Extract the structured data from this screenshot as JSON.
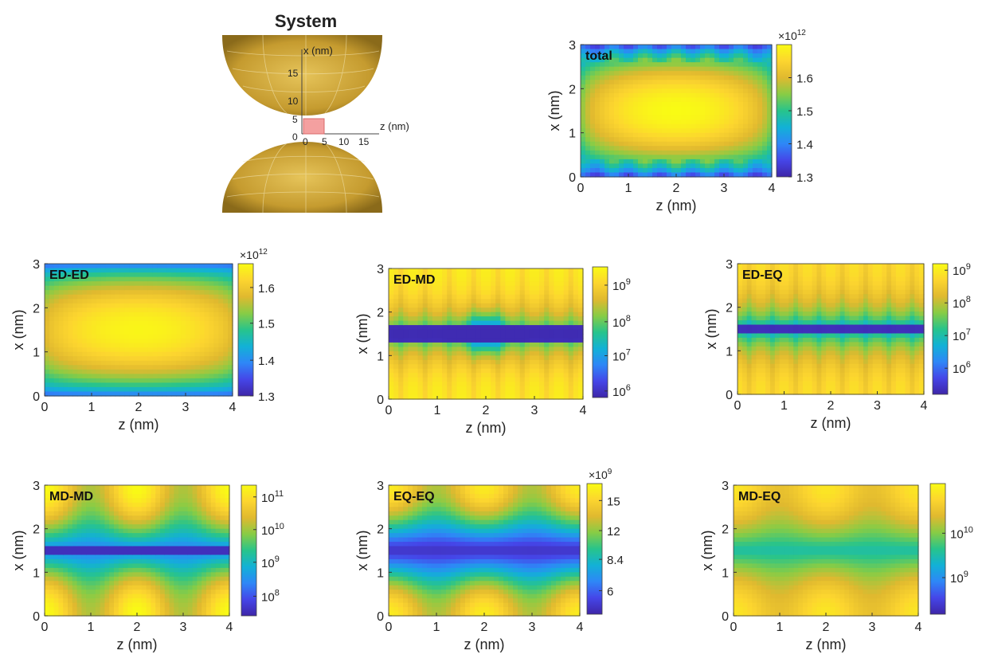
{
  "system": {
    "title": "System",
    "x_axis_label": "x (nm)",
    "z_axis_label": "z (nm)",
    "x_ticks": [
      "0",
      "5",
      "10",
      "15"
    ],
    "z_ticks": [
      "0",
      "5",
      "10",
      "15"
    ],
    "sphere_color": "#c9a23a",
    "region_color": "#f4a0a0"
  },
  "colors": {
    "colormap": [
      "#3e26a8",
      "#4546e8",
      "#2e87f7",
      "#12b1d6",
      "#28c48b",
      "#88cc45",
      "#e0b92f",
      "#fcd52f",
      "#f9fb14"
    ]
  },
  "chart_data": [
    {
      "type": "heatmap",
      "label": "total",
      "xlabel": "z (nm)",
      "ylabel": "x (nm)",
      "xlim": [
        0,
        4
      ],
      "ylim": [
        0,
        3
      ],
      "x_ticks": [
        "0",
        "1",
        "2",
        "3",
        "4"
      ],
      "y_ticks": [
        "0",
        "1",
        "2",
        "3"
      ],
      "colorbar": {
        "exponent": "×10",
        "exponent_power": "12",
        "ticks": [
          "1.6",
          "1.5",
          "1.4",
          "1.3"
        ],
        "scale": "linear",
        "range": [
          1.3,
          1.7
        ]
      }
    },
    {
      "type": "heatmap",
      "label": "ED-ED",
      "xlabel": "z (nm)",
      "ylabel": "x (nm)",
      "xlim": [
        0,
        4
      ],
      "ylim": [
        0,
        3
      ],
      "x_ticks": [
        "0",
        "1",
        "2",
        "3",
        "4"
      ],
      "y_ticks": [
        "0",
        "1",
        "2",
        "3"
      ],
      "colorbar": {
        "exponent": "×10",
        "exponent_power": "12",
        "ticks": [
          "1.6",
          "1.5",
          "1.4",
          "1.3"
        ],
        "scale": "linear",
        "range": [
          1.3,
          1.67
        ]
      }
    },
    {
      "type": "heatmap",
      "label": "ED-MD",
      "xlabel": "z (nm)",
      "ylabel": "x (nm)",
      "xlim": [
        0,
        4
      ],
      "ylim": [
        0,
        3
      ],
      "x_ticks": [
        "0",
        "1",
        "2",
        "3",
        "4"
      ],
      "y_ticks": [
        "0",
        "1",
        "2",
        "3"
      ],
      "colorbar": {
        "base": "10",
        "ticks": [
          "9",
          "8",
          "7",
          "6"
        ],
        "scale": "log"
      }
    },
    {
      "type": "heatmap",
      "label": "ED-EQ",
      "xlabel": "z (nm)",
      "ylabel": "x (nm)",
      "xlim": [
        0,
        4
      ],
      "ylim": [
        0,
        3
      ],
      "x_ticks": [
        "0",
        "1",
        "2",
        "3",
        "4"
      ],
      "y_ticks": [
        "0",
        "1",
        "2",
        "3"
      ],
      "colorbar": {
        "base": "10",
        "ticks": [
          "9",
          "8",
          "7",
          "6"
        ],
        "scale": "log"
      }
    },
    {
      "type": "heatmap",
      "label": "MD-MD",
      "xlabel": "z (nm)",
      "ylabel": "x (nm)",
      "xlim": [
        0,
        4
      ],
      "ylim": [
        0,
        3
      ],
      "x_ticks": [
        "0",
        "1",
        "2",
        "3",
        "4"
      ],
      "y_ticks": [
        "0",
        "1",
        "2",
        "3"
      ],
      "colorbar": {
        "base": "10",
        "ticks": [
          "11",
          "10",
          "9",
          "8"
        ],
        "scale": "log"
      }
    },
    {
      "type": "heatmap",
      "label": "EQ-EQ",
      "xlabel": "z (nm)",
      "ylabel": "x (nm)",
      "xlim": [
        0,
        4
      ],
      "ylim": [
        0,
        3
      ],
      "x_ticks": [
        "0",
        "1",
        "2",
        "3",
        "4"
      ],
      "y_ticks": [
        "0",
        "1",
        "2",
        "3"
      ],
      "colorbar": {
        "exponent": "×10",
        "exponent_power": "9",
        "ticks": [
          "15",
          "12",
          "8.4",
          "6"
        ],
        "scale": "linear",
        "range": [
          4.5,
          17
        ]
      }
    },
    {
      "type": "heatmap",
      "label": "MD-EQ",
      "xlabel": "z (nm)",
      "ylabel": "x (nm)",
      "xlim": [
        0,
        4
      ],
      "ylim": [
        0,
        3
      ],
      "x_ticks": [
        "0",
        "1",
        "2",
        "3",
        "4"
      ],
      "y_ticks": [
        "0",
        "1",
        "2",
        "3"
      ],
      "colorbar": {
        "base": "10",
        "ticks": [
          "10",
          "9"
        ],
        "scale": "log"
      }
    }
  ]
}
